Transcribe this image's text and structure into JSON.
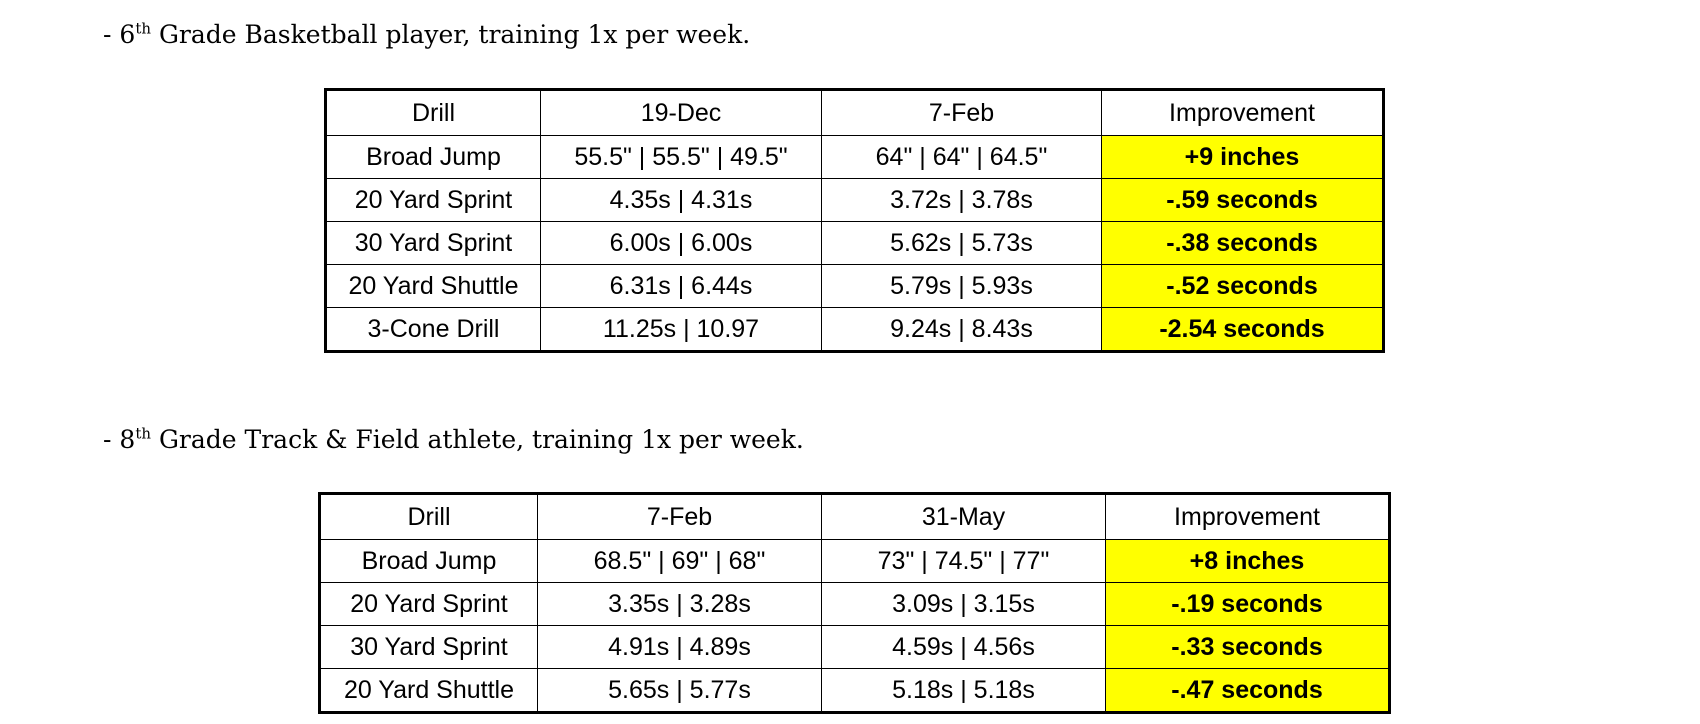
{
  "sections": [
    {
      "heading": {
        "prefix": "- 6",
        "ordinal": "th",
        "suffix": " Grade Basketball player, training 1x per week."
      },
      "table": {
        "headers": [
          "Drill",
          "19-Dec",
          "7-Feb",
          "Improvement"
        ],
        "rows": [
          [
            "Broad Jump",
            "55.5\" | 55.5\" | 49.5\"",
            "64\" | 64\" | 64.5\"",
            "+9 inches"
          ],
          [
            "20 Yard Sprint",
            "4.35s | 4.31s",
            "3.72s | 3.78s",
            "-.59 seconds"
          ],
          [
            "30 Yard Sprint",
            "6.00s | 6.00s",
            "5.62s | 5.73s",
            "-.38 seconds"
          ],
          [
            "20 Yard Shuttle",
            "6.31s | 6.44s",
            "5.79s | 5.93s",
            "-.52 seconds"
          ],
          [
            "3-Cone Drill",
            "11.25s | 10.97",
            "9.24s | 8.43s",
            "-2.54 seconds"
          ]
        ]
      }
    },
    {
      "heading": {
        "prefix": "- 8",
        "ordinal": "th",
        "suffix": " Grade Track & Field athlete, training 1x per week."
      },
      "table": {
        "headers": [
          "Drill",
          "7-Feb",
          "31-May",
          "Improvement"
        ],
        "rows": [
          [
            "Broad Jump",
            "68.5\" | 69\" | 68\"",
            "73\" | 74.5\" | 77\"",
            "+8 inches"
          ],
          [
            "20 Yard Sprint",
            "3.35s | 3.28s",
            "3.09s | 3.15s",
            "-.19 seconds"
          ],
          [
            "30 Yard Sprint",
            "4.91s | 4.89s",
            "4.59s | 4.56s",
            "-.33 seconds"
          ],
          [
            "20 Yard Shuttle",
            "5.65s | 5.77s",
            "5.18s | 5.18s",
            "-.47 seconds"
          ]
        ]
      }
    }
  ],
  "colors": {
    "highlight": "#ffff00",
    "border": "#000000",
    "text": "#000000"
  }
}
